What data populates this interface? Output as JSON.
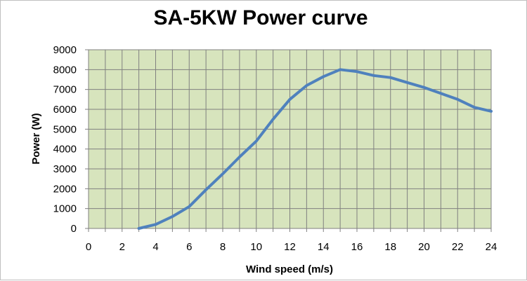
{
  "chart_data": {
    "type": "line",
    "title": "SA-5KW Power curve",
    "xlabel": "Wind speed (m/s)",
    "ylabel": "Power (W)",
    "xlim": [
      0,
      24
    ],
    "ylim": [
      0,
      9000
    ],
    "x_ticks": [
      0,
      2,
      4,
      6,
      8,
      10,
      12,
      14,
      16,
      18,
      20,
      22,
      24
    ],
    "y_ticks": [
      0,
      1000,
      2000,
      3000,
      4000,
      5000,
      6000,
      7000,
      8000,
      9000
    ],
    "grid": true,
    "minor_x_grid_step": 1,
    "plot_background": "#d7e4bd",
    "grid_color": "#808080",
    "line_color": "#4f81bd",
    "series": [
      {
        "x": [
          3,
          4,
          5,
          6,
          7,
          8,
          9,
          10,
          11,
          12,
          13,
          14,
          15,
          16,
          17,
          18,
          19,
          20,
          21,
          22,
          23,
          24
        ],
        "y": [
          0,
          200,
          600,
          1100,
          1950,
          2750,
          3600,
          4400,
          5500,
          6500,
          7200,
          7650,
          8000,
          7900,
          7700,
          7600,
          7350,
          7100,
          6800,
          6500,
          6100,
          5900
        ]
      }
    ]
  }
}
